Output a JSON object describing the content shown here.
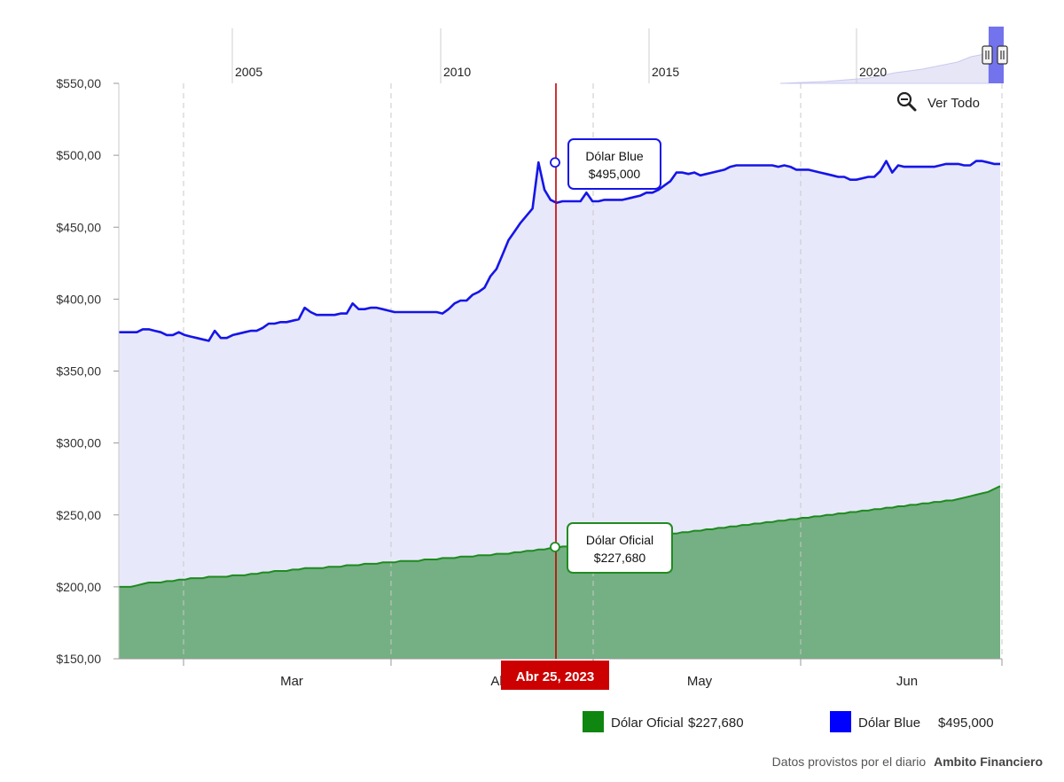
{
  "chart_data": {
    "type": "area",
    "y_ticks": [
      "$550,00",
      "$500,00",
      "$450,00",
      "$400,00",
      "$350,00",
      "$300,00",
      "$250,00",
      "$200,00",
      "$150,00"
    ],
    "ylim": [
      150,
      550
    ],
    "x_ticks": [
      "Mar",
      "Abr",
      "May",
      "Jun"
    ],
    "navigator_ticks": [
      "2005",
      "2010",
      "2015",
      "2020"
    ],
    "zoom_button": "Ver Todo",
    "crosshair": {
      "date": "Abr 25, 2023",
      "tooltips": [
        {
          "series": "Dólar Blue",
          "value": "$495,000",
          "y": 495
        },
        {
          "series": "Dólar Oficial",
          "value": "$227,680",
          "y": 227.68
        }
      ]
    },
    "series": [
      {
        "name": "Dólar Blue",
        "color": "#1515e8",
        "fill": "#e8e8fb",
        "legend_value": "$495,000",
        "values": [
          377,
          377,
          377,
          377,
          379,
          379,
          378,
          377,
          375,
          375,
          377,
          375,
          374,
          373,
          372,
          371,
          378,
          373,
          373,
          375,
          376,
          377,
          378,
          378,
          380,
          383,
          383,
          384,
          384,
          385,
          386,
          394,
          391,
          389,
          389,
          389,
          389,
          390,
          390,
          397,
          393,
          393,
          394,
          394,
          393,
          392,
          391,
          391,
          391,
          391,
          391,
          391,
          391,
          391,
          390,
          393,
          397,
          399,
          399,
          403,
          405,
          408,
          416,
          421,
          431,
          441,
          447,
          453,
          458,
          463,
          495,
          476,
          469,
          467,
          468,
          468,
          468,
          468,
          474,
          468,
          468,
          469,
          469,
          469,
          469,
          470,
          471,
          472,
          474,
          474,
          476,
          479,
          482,
          488,
          488,
          487,
          488,
          486,
          487,
          488,
          489,
          490,
          492,
          493,
          493,
          493,
          493,
          493,
          493,
          493,
          492,
          493,
          492,
          490,
          490,
          490,
          489,
          488,
          487,
          486,
          485,
          485,
          483,
          483,
          484,
          485,
          485,
          489,
          496,
          488,
          493,
          492,
          492,
          492,
          492,
          492,
          492,
          493,
          494,
          494,
          494,
          493,
          493,
          496,
          496,
          495,
          494,
          494
        ]
      },
      {
        "name": "Dólar Oficial",
        "color": "#1f8a1f",
        "fill": "#74b083",
        "legend_value": "$227,680",
        "values": [
          200,
          200,
          200,
          201,
          202,
          203,
          203,
          203,
          204,
          204,
          205,
          205,
          206,
          206,
          206,
          207,
          207,
          207,
          207,
          208,
          208,
          208,
          209,
          209,
          210,
          210,
          211,
          211,
          211,
          212,
          212,
          213,
          213,
          213,
          213,
          214,
          214,
          214,
          215,
          215,
          215,
          216,
          216,
          216,
          217,
          217,
          217,
          218,
          218,
          218,
          218,
          219,
          219,
          219,
          220,
          220,
          220,
          221,
          221,
          221,
          222,
          222,
          222,
          223,
          223,
          223,
          224,
          224,
          225,
          225,
          226,
          226,
          227,
          227,
          228,
          228,
          229,
          229,
          230,
          230,
          231,
          231,
          232,
          232,
          233,
          233,
          234,
          234,
          235,
          235,
          236,
          236,
          237,
          237,
          238,
          238,
          239,
          239,
          240,
          240,
          241,
          241,
          242,
          242,
          243,
          243,
          244,
          244,
          245,
          245,
          246,
          246,
          247,
          247,
          248,
          248,
          249,
          249,
          250,
          250,
          251,
          251,
          252,
          252,
          253,
          253,
          254,
          254,
          255,
          255,
          256,
          256,
          257,
          257,
          258,
          258,
          259,
          259,
          260,
          260,
          261,
          262,
          263,
          264,
          265,
          266,
          268,
          270
        ]
      }
    ],
    "credit": {
      "prefix": "Datos provistos por el diario",
      "source": "Ambito Financiero"
    }
  }
}
